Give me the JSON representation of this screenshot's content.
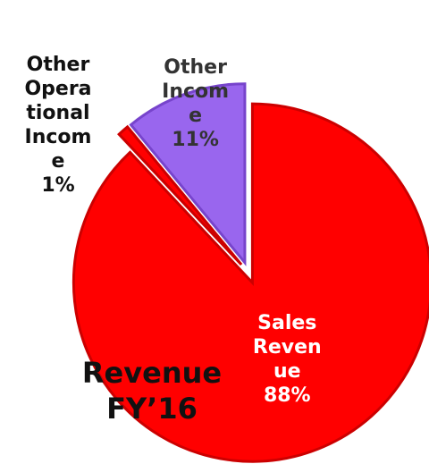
{
  "chart_data": {
    "type": "pie",
    "title": "Revenue FY’16",
    "categories": [
      "Sales Revenue",
      "Other Operational Income",
      "Other Income"
    ],
    "values": [
      88,
      1,
      11
    ],
    "value_labels": [
      "88%",
      "1%",
      "11%"
    ],
    "colors": [
      "#ff0000",
      "#ff0000",
      "#9966ee"
    ]
  }
}
